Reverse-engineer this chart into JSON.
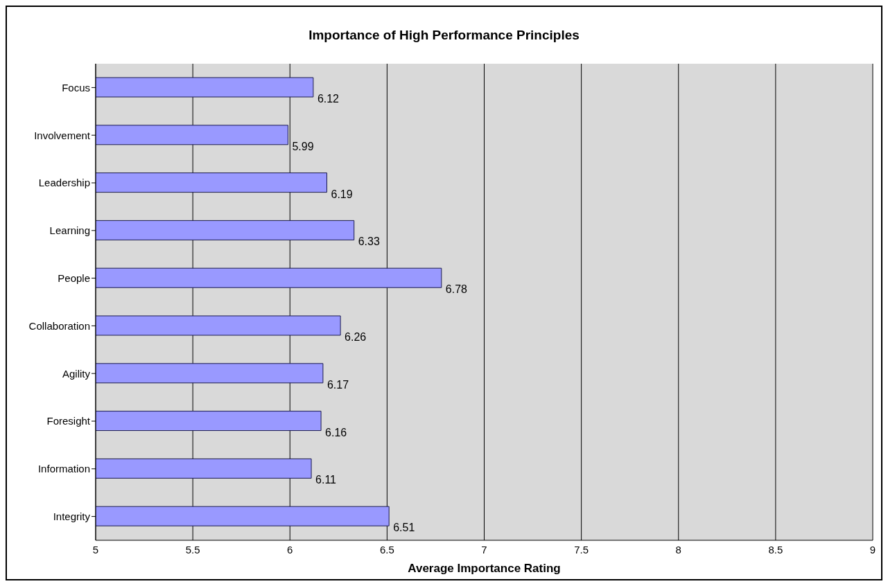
{
  "chart_data": {
    "type": "bar",
    "orientation": "horizontal",
    "title": "Importance of High Performance Principles",
    "xlabel": "Average Importance Rating",
    "categories": [
      "Focus",
      "Involvement",
      "Leadership",
      "Learning",
      "People",
      "Collaboration",
      "Agility",
      "Foresight",
      "Information",
      "Integrity"
    ],
    "values": [
      6.12,
      5.99,
      6.19,
      6.33,
      6.78,
      6.26,
      6.17,
      6.16,
      6.11,
      6.51
    ],
    "color": "#9999ff",
    "xlim": [
      5,
      9
    ],
    "xticks": [
      5,
      5.5,
      6,
      6.5,
      7,
      7.5,
      8,
      8.5,
      9
    ],
    "grid": "x",
    "data_labels": true
  }
}
